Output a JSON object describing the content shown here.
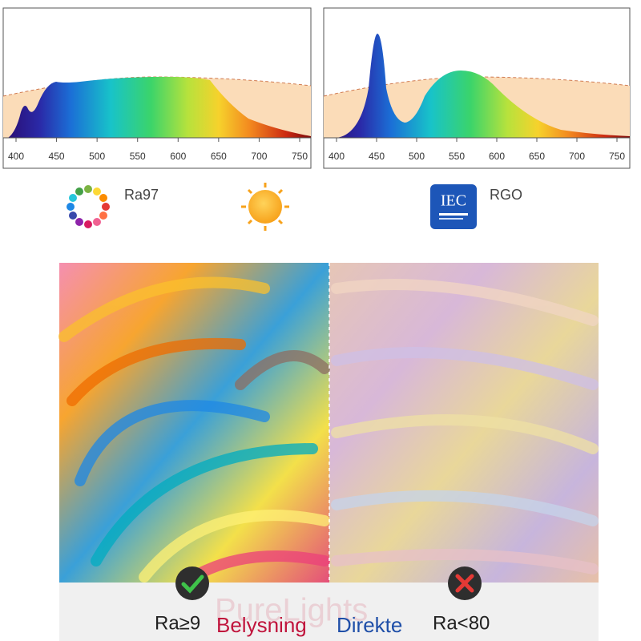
{
  "spectrum_charts": [
    {
      "xticks": [
        400,
        450,
        500,
        550,
        600,
        650,
        700,
        750
      ]
    },
    {
      "xticks": [
        400,
        450,
        500,
        550,
        600,
        650,
        700,
        750
      ]
    }
  ],
  "badges": {
    "ra": "Ra97",
    "iec": "IEC",
    "rgo": "RGO"
  },
  "comparison": {
    "left_label": "Ra≥9",
    "right_label": "Ra<80"
  },
  "watermarks": {
    "primary": "PureLights",
    "brand_a": "Belysning",
    "brand_b": "Direkte"
  }
}
